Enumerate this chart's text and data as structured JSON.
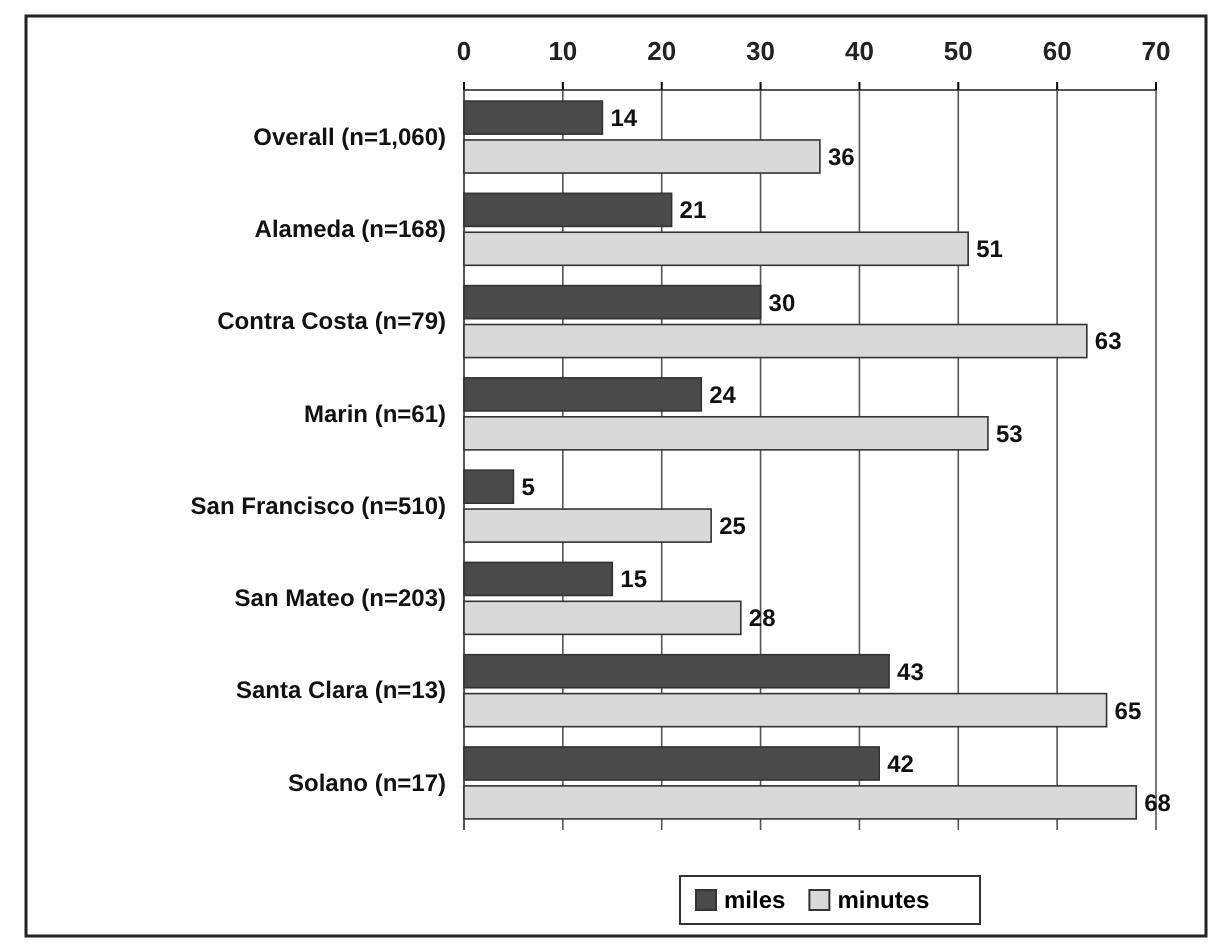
{
  "chart_data": {
    "type": "bar",
    "orientation": "horizontal",
    "categories": [
      "Overall (n=1,060)",
      "Alameda (n=168)",
      "Contra Costa (n=79)",
      "Marin (n=61)",
      "San Francisco (n=510)",
      "San Mateo (n=203)",
      "Santa Clara (n=13)",
      "Solano (n=17)"
    ],
    "series": [
      {
        "name": "miles",
        "color": "#4a4a4a",
        "values": [
          14,
          21,
          30,
          24,
          5,
          15,
          43,
          42
        ]
      },
      {
        "name": "minutes",
        "color": "#d9d9d9",
        "values": [
          36,
          51,
          63,
          53,
          25,
          28,
          65,
          68
        ]
      }
    ],
    "xlim": [
      0,
      70
    ],
    "xticks": [
      0,
      10,
      20,
      30,
      40,
      50,
      60,
      70
    ],
    "grid": "x",
    "legend": "bottom",
    "data_labels": true
  }
}
